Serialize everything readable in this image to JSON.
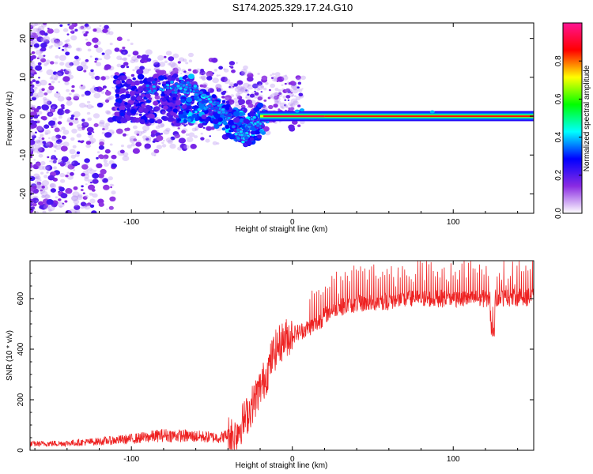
{
  "title": "S174.2025.329.17.24.G10",
  "chart_data": [
    {
      "type": "heatmap",
      "panel": "spectrogram",
      "xlabel": "Height of straight line (km)",
      "ylabel": "Frequency (Hz)",
      "xlim": [
        -163,
        150
      ],
      "ylim": [
        -25,
        24
      ],
      "x_ticks": [
        "-100",
        "0",
        "100"
      ],
      "x_tick_values": [
        -100,
        0,
        100
      ],
      "y_ticks": [
        "20",
        "10",
        "0",
        "-10",
        "-20"
      ],
      "y_tick_values": [
        20,
        10,
        0,
        -10,
        -20
      ],
      "colorbar": {
        "label": "Normalized spectral amplitude",
        "range": [
          0,
          1
        ],
        "ticks": [
          "0.0",
          "0.2",
          "0.4",
          "0.6",
          "0.8"
        ],
        "tick_values": [
          0.0,
          0.2,
          0.4,
          0.6,
          0.8
        ],
        "colors": [
          "#ffffff",
          "#8a2be2",
          "#0000ff",
          "#00ffff",
          "#00ff00",
          "#ffff00",
          "#ff0000",
          "#ff1493"
        ]
      },
      "ridge": {
        "description_series": "dominant frequency track",
        "points": [
          {
            "x": -60,
            "y": 5.5
          },
          {
            "x": -50,
            "y": 3
          },
          {
            "x": -40,
            "y": 0
          },
          {
            "x": -35,
            "y": -4
          },
          {
            "x": -30,
            "y": -6
          },
          {
            "x": -25,
            "y": -2
          },
          {
            "x": -18,
            "y": 0
          },
          {
            "x": 0,
            "y": 0.5
          },
          {
            "x": 5,
            "y": 1
          },
          {
            "x": 10,
            "y": 0
          },
          {
            "x": 150,
            "y": 0
          }
        ]
      }
    },
    {
      "type": "line",
      "panel": "snr",
      "xlabel": "Height of straight line (km)",
      "ylabel": "SNR (10 * v/v)",
      "xlim": [
        -163,
        150
      ],
      "ylim": [
        0,
        750
      ],
      "x_ticks": [
        "-100",
        "0",
        "100"
      ],
      "x_tick_values": [
        -100,
        0,
        100
      ],
      "y_ticks": [
        "0",
        "200",
        "400",
        "600"
      ],
      "y_tick_values": [
        0,
        200,
        400,
        600
      ],
      "color": "#ee2222",
      "series": [
        {
          "name": "SNR",
          "envelope_x": [
            -163,
            -140,
            -120,
            -100,
            -80,
            -60,
            -45,
            -35,
            -28,
            -22,
            -16,
            -12,
            -8,
            -3,
            5,
            15,
            25,
            40,
            60,
            80,
            100,
            120,
            140,
            150
          ],
          "envelope_y": [
            25,
            28,
            35,
            45,
            60,
            55,
            50,
            70,
            140,
            220,
            300,
            380,
            420,
            450,
            470,
            500,
            560,
            580,
            590,
            600,
            600,
            600,
            605,
            605
          ]
        }
      ]
    }
  ]
}
